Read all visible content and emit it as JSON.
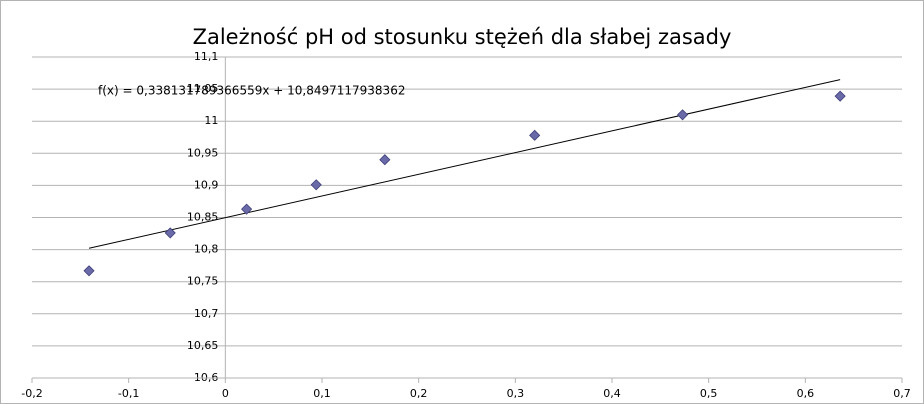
{
  "chart_data": {
    "type": "scatter",
    "title": "Zależność pH od stosunku stężeń dla słabej zasady",
    "series": [
      {
        "color": "#6a6aa8",
        "x": [
          -0.141,
          -0.057,
          0.022,
          0.094,
          0.165,
          0.32,
          0.473,
          0.636
        ],
        "values": [
          10.767,
          10.826,
          10.863,
          10.901,
          10.94,
          10.978,
          11.01,
          11.039
        ]
      }
    ],
    "trendline": {
      "slope": 0.338131789366559,
      "intercept": 10.8497117938362,
      "label": "f(x) = 0,338131789366559x + 10,8497117938362",
      "color": "#000000"
    },
    "xlim": [
      -0.2,
      0.7
    ],
    "xticks": [
      {
        "value": -0.2,
        "label": "-0,2"
      },
      {
        "value": -0.1,
        "label": "-0,1"
      },
      0,
      {
        "value": 0.1,
        "label": "0,1"
      },
      {
        "value": 0.2,
        "label": "0,2"
      },
      {
        "value": 0.3,
        "label": "0,3"
      },
      {
        "value": 0.4,
        "label": "0,4"
      },
      {
        "value": 0.5,
        "label": "0,5"
      },
      {
        "value": 0.6,
        "label": "0,6"
      },
      {
        "value": 0.7,
        "label": "0,7"
      }
    ],
    "ylim": [
      10.6,
      11.1
    ],
    "yticks": [
      {
        "value": 10.6,
        "label": "10,6"
      },
      {
        "value": 10.65,
        "label": "10,65"
      },
      {
        "value": 10.7,
        "label": "10,7"
      },
      {
        "value": 10.75,
        "label": "10,75"
      },
      {
        "value": 10.8,
        "label": "10,8"
      },
      {
        "value": 10.85,
        "label": "10,85"
      },
      {
        "value": 10.9,
        "label": "10,9"
      },
      {
        "value": 10.95,
        "label": "10,95"
      },
      11,
      {
        "value": 11.05,
        "label": "11,05"
      },
      {
        "value": 11.1,
        "label": "11,1"
      }
    ],
    "grid": true
  }
}
